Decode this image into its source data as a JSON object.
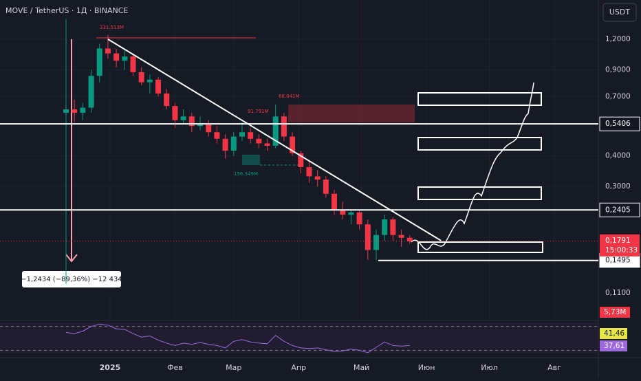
{
  "chart_data": {
    "type": "candlestick",
    "title": "MOVE / TetherUS · 1Д · BINANCE",
    "currency": "USDT",
    "log_scale": true,
    "ylim": [
      0.0855,
      1.736
    ],
    "xlim": [
      -52.5,
      233
    ],
    "yticks": [
      {
        "value": 1.2,
        "label": "1,2000"
      },
      {
        "value": 0.9,
        "label": "0,9000"
      },
      {
        "value": 0.7,
        "label": "0,7000"
      },
      {
        "value": 0.4,
        "label": "0,4000"
      },
      {
        "value": 0.3,
        "label": "0,3000"
      },
      {
        "value": 0.11,
        "label": "0,1100"
      }
    ],
    "xticks": [
      {
        "value": 0,
        "label": "2025"
      },
      {
        "value": 31,
        "label": "Фев"
      },
      {
        "value": 59,
        "label": "Мар"
      },
      {
        "value": 90,
        "label": "Апр"
      },
      {
        "value": 120,
        "label": "Май"
      },
      {
        "value": 151,
        "label": "Июн"
      },
      {
        "value": 181,
        "label": "Июл"
      },
      {
        "value": 212,
        "label": "Авг"
      }
    ],
    "up_color": "#089981",
    "down_color": "#f23645",
    "x": [
      -21,
      -17,
      -13,
      -9,
      -5,
      -1,
      3,
      7,
      11,
      15,
      19,
      23,
      27,
      31,
      35,
      39,
      43,
      47,
      51,
      55,
      59,
      63,
      67,
      71,
      75,
      79,
      83,
      87,
      91,
      95,
      99,
      103,
      107,
      111,
      115,
      119,
      123,
      127,
      131,
      135,
      139,
      143
    ],
    "open": [
      0.6,
      0.62,
      0.6,
      0.63,
      0.85,
      1.1,
      1.05,
      0.98,
      1.02,
      0.88,
      0.8,
      0.82,
      0.72,
      0.64,
      0.56,
      0.58,
      0.53,
      0.54,
      0.5,
      0.47,
      0.42,
      0.48,
      0.5,
      0.47,
      0.45,
      0.44,
      0.58,
      0.48,
      0.41,
      0.36,
      0.33,
      0.32,
      0.28,
      0.24,
      0.23,
      0.235,
      0.21,
      0.165,
      0.19,
      0.22,
      0.19,
      0.185
    ],
    "high": [
      1.45,
      0.68,
      0.66,
      0.9,
      1.15,
      1.25,
      1.1,
      1.08,
      1.05,
      0.92,
      0.86,
      0.84,
      0.75,
      0.66,
      0.62,
      0.6,
      0.58,
      0.56,
      0.53,
      0.49,
      0.5,
      0.55,
      0.52,
      0.49,
      0.47,
      0.65,
      0.6,
      0.5,
      0.42,
      0.38,
      0.35,
      0.33,
      0.29,
      0.26,
      0.24,
      0.24,
      0.22,
      0.2,
      0.23,
      0.225,
      0.2,
      0.19
    ],
    "low": [
      0.12,
      0.55,
      0.56,
      0.6,
      0.8,
      1.0,
      0.92,
      0.9,
      0.85,
      0.78,
      0.72,
      0.7,
      0.62,
      0.52,
      0.54,
      0.5,
      0.51,
      0.48,
      0.45,
      0.39,
      0.4,
      0.46,
      0.45,
      0.43,
      0.42,
      0.43,
      0.46,
      0.4,
      0.34,
      0.31,
      0.3,
      0.27,
      0.23,
      0.22,
      0.21,
      0.2,
      0.15,
      0.15,
      0.18,
      0.18,
      0.17,
      0.175
    ],
    "close": [
      0.62,
      0.6,
      0.63,
      0.85,
      1.1,
      1.05,
      0.98,
      1.02,
      0.88,
      0.8,
      0.82,
      0.72,
      0.64,
      0.56,
      0.58,
      0.53,
      0.54,
      0.5,
      0.47,
      0.42,
      0.48,
      0.5,
      0.47,
      0.45,
      0.44,
      0.58,
      0.48,
      0.41,
      0.36,
      0.33,
      0.32,
      0.28,
      0.24,
      0.23,
      0.235,
      0.21,
      0.165,
      0.19,
      0.22,
      0.19,
      0.185,
      0.179
    ],
    "levels": [
      {
        "value": 0.5406,
        "label": "0,5406"
      },
      {
        "value": 0.2405,
        "label": "0,2405"
      },
      {
        "value": 0.1495,
        "label": "0,1495"
      }
    ],
    "last_price": {
      "value": 0.1791,
      "label": "0,1791"
    },
    "countdown": "15:00:33",
    "trendline": {
      "x": [
        -1,
        158
      ],
      "y": [
        1.2,
        0.18
      ]
    },
    "volume_label": "5,73M",
    "annotations": [
      "331.513M",
      "91.791M",
      "68.041M",
      "156.349M",
      "−1,2434 (−89,36%) −12 434"
    ],
    "rsi": {
      "ylim": [
        20,
        80
      ],
      "levels": [
        70,
        30
      ],
      "values": [
        60,
        58,
        62,
        70,
        74,
        72,
        66,
        65,
        58,
        52,
        54,
        47,
        42,
        38,
        42,
        40,
        43,
        40,
        38,
        34,
        45,
        48,
        44,
        42,
        41,
        55,
        45,
        38,
        34,
        33,
        34,
        31,
        28,
        29,
        32,
        30,
        26,
        35,
        44,
        38,
        37,
        38
      ],
      "value_label": "41,46",
      "ma_label": "37,61",
      "color": "#9c6ade",
      "ma_color": "#e6e649"
    }
  }
}
